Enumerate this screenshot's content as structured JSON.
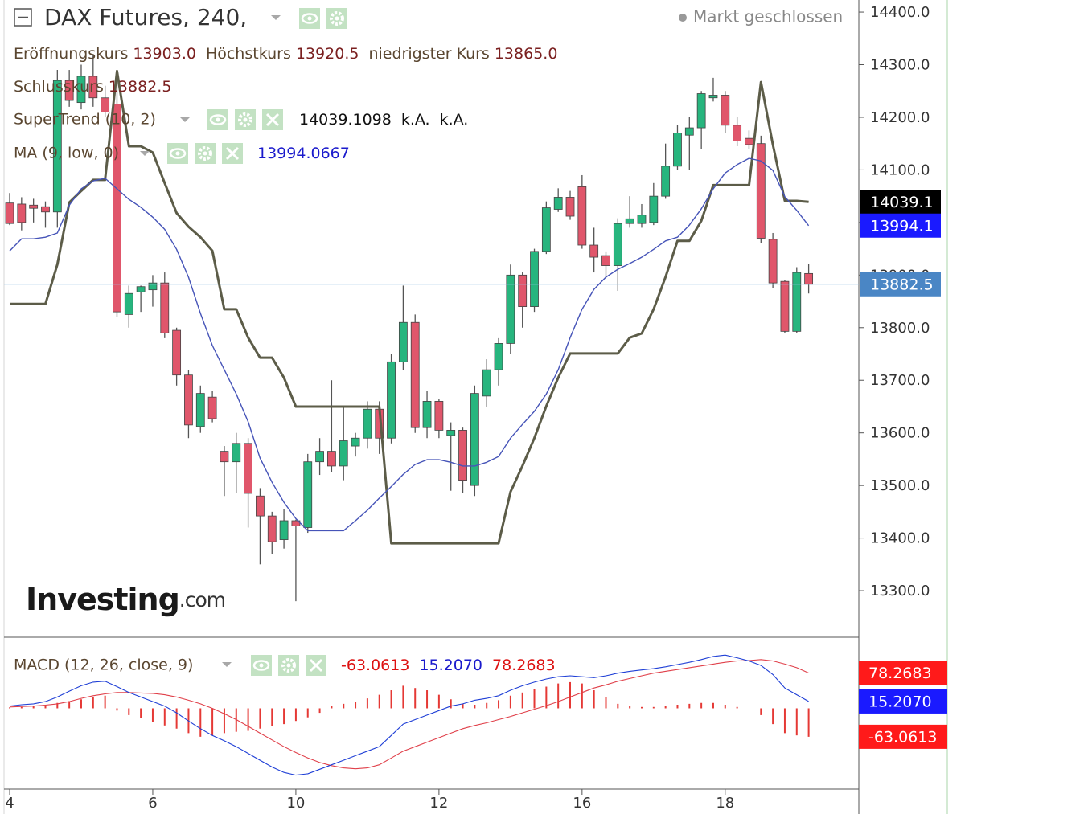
{
  "chart_data": [
    {
      "type": "candlestick",
      "title": "DAX Futures, 240,",
      "status": "Markt geschlossen",
      "ohlc_labels": [
        {
          "name": "Eröffnungskurs",
          "value": "13903.0"
        },
        {
          "name": "Höchstkurs",
          "value": "13920.5"
        },
        {
          "name": "niedrigster Kurs",
          "value": "13865.0"
        },
        {
          "name": "Schlusskurs",
          "value": "13882.5"
        }
      ],
      "watermark": {
        "brand": "Investing",
        "suffix": ".com"
      },
      "categories": [
        "4",
        null,
        null,
        null,
        null,
        null,
        null,
        null,
        null,
        null,
        null,
        null,
        "6",
        null,
        null,
        null,
        null,
        null,
        null,
        null,
        null,
        null,
        null,
        null,
        "10",
        null,
        null,
        null,
        null,
        null,
        null,
        null,
        null,
        null,
        null,
        null,
        "12",
        null,
        null,
        null,
        null,
        null,
        null,
        null,
        null,
        null,
        null,
        null,
        "16",
        null,
        null,
        null,
        null,
        null,
        null,
        null,
        null,
        null,
        null,
        null,
        "18",
        null,
        null,
        null,
        null,
        null,
        null,
        null
      ],
      "open": [
        14037,
        14035,
        14033,
        14030,
        14020,
        14270,
        14228,
        14278,
        14237,
        14225,
        13825,
        13868,
        13872,
        13885,
        13795,
        13710,
        13612,
        13668,
        13565,
        13545,
        13580,
        13480,
        13442,
        13397,
        13433,
        13420,
        13545,
        13565,
        13537,
        13575,
        13590,
        13645,
        13590,
        13735,
        13810,
        13610,
        13660,
        13595,
        13605,
        13500,
        13670,
        13720,
        13770,
        13900,
        13840,
        13945,
        14025,
        14048,
        14068,
        13957,
        13937,
        13918,
        13998,
        13998,
        14000,
        14050,
        14107,
        14166,
        14180,
        14237,
        14242,
        14185,
        14160,
        14150,
        13968,
        13888,
        13793,
        13903
      ],
      "high": [
        14056,
        14048,
        14045,
        14040,
        14290,
        14290,
        14300,
        14320,
        14260,
        14290,
        13880,
        13880,
        13900,
        13905,
        13800,
        13720,
        13690,
        13680,
        13575,
        13600,
        13590,
        13495,
        13450,
        13455,
        13435,
        13560,
        13590,
        13700,
        13650,
        13600,
        13660,
        13660,
        13750,
        13880,
        13825,
        13680,
        13665,
        13620,
        13610,
        13690,
        13740,
        13780,
        13920,
        13905,
        13950,
        14040,
        14065,
        14060,
        14090,
        13990,
        13945,
        14008,
        14050,
        14035,
        14075,
        14150,
        14185,
        14200,
        14250,
        14275,
        14250,
        14200,
        14175,
        14165,
        13980,
        13890,
        13915,
        13920.5
      ],
      "low": [
        13995,
        13985,
        14000,
        13990,
        13990,
        14220,
        14215,
        14220,
        14200,
        13820,
        13800,
        13830,
        13840,
        13780,
        13690,
        13590,
        13600,
        13620,
        13480,
        13485,
        13420,
        13350,
        13370,
        13380,
        13280,
        13410,
        13520,
        13525,
        13510,
        13555,
        13570,
        13560,
        13580,
        13720,
        13600,
        13590,
        13590,
        13490,
        13485,
        13480,
        13650,
        13690,
        13750,
        13800,
        13830,
        13940,
        14020,
        14005,
        13950,
        13905,
        13895,
        13870,
        13990,
        13990,
        13995,
        14045,
        14100,
        14100,
        14140,
        14230,
        14170,
        14145,
        14140,
        13960,
        13875,
        13790,
        13790,
        13865
      ],
      "close": [
        13998,
        14000,
        14027,
        14020,
        14270,
        14232,
        14278,
        14237,
        14210,
        13830,
        13865,
        13878,
        13885,
        13790,
        13710,
        13615,
        13675,
        13627,
        13545,
        13580,
        13485,
        13442,
        13393,
        13433,
        13423,
        13545,
        13565,
        13537,
        13585,
        13590,
        13645,
        13590,
        13735,
        13810,
        13610,
        13660,
        13605,
        13605,
        13510,
        13675,
        13720,
        13770,
        13900,
        13840,
        13945,
        14028,
        14048,
        14012,
        13957,
        13934,
        13918,
        13998,
        14007,
        14014,
        14050,
        14107,
        14170,
        14180,
        14245,
        14242,
        14185,
        14155,
        14148,
        13970,
        13885,
        13793,
        13905,
        13882.5
      ],
      "up_color": "#27b57e",
      "down_color": "#e0566b",
      "last_label": "13882.5",
      "last_label_color": "#4a86c5",
      "price_line_color": "#9cc3e6",
      "series": [
        {
          "name": "SuperTrend (10, 2)",
          "color": "#5c5c48",
          "legend_values": [
            "14039.1098",
            "k.A.",
            "k.A."
          ],
          "legend_color": "#111111",
          "axis_label": "14039.1",
          "label_color": "#000000",
          "values": [
            13845,
            13845,
            13845,
            13845,
            13920,
            14038,
            14060,
            14081,
            14081,
            14288,
            14145,
            14145,
            14133,
            14075,
            14018,
            13992,
            13972,
            13946,
            13835,
            13835,
            13781,
            13743,
            13743,
            13705,
            13650,
            13650,
            13650,
            13650,
            13650,
            13650,
            13650,
            13650,
            13390,
            13390,
            13390,
            13390,
            13390,
            13390,
            13390,
            13390,
            13390,
            13390,
            13488,
            13537,
            13590,
            13651,
            13705,
            13751,
            13751,
            13751,
            13751,
            13751,
            13781,
            13789,
            13835,
            13896,
            13965,
            13965,
            14003,
            14071,
            14071,
            14071,
            14071,
            14267,
            14148,
            14041,
            14041,
            14039.1098
          ]
        },
        {
          "name": "MA (9, low, 0)",
          "color": "#4654b8",
          "legend_values": [
            "13994.0667"
          ],
          "legend_color": "#1a1acc",
          "axis_label": "13994.1",
          "label_color": "#1a1aff",
          "values": [
            13946,
            13969,
            13969,
            13972,
            13980,
            14033,
            14064,
            14079,
            14084,
            14064,
            14044,
            14029,
            14010,
            13987,
            13949,
            13896,
            13827,
            13766,
            13720,
            13674,
            13621,
            13552,
            13506,
            13468,
            13437,
            13414,
            13414,
            13414,
            13414,
            13433,
            13453,
            13476,
            13498,
            13521,
            13540,
            13549,
            13549,
            13544,
            13537,
            13537,
            13544,
            13555,
            13590,
            13616,
            13641,
            13674,
            13720,
            13781,
            13835,
            13873,
            13896,
            13911,
            13922,
            13934,
            13949,
            13965,
            13972,
            13995,
            14026,
            14064,
            14094,
            14110,
            14122,
            14117,
            14099,
            14049,
            14023,
            13994.0667
          ]
        }
      ],
      "ylim": [
        13213,
        14423
      ],
      "yticks": [
        {
          "value": 13300,
          "label": "13300.0"
        },
        {
          "value": 13400,
          "label": "13400.0"
        },
        {
          "value": 13500,
          "label": "13500.0"
        },
        {
          "value": 13600,
          "label": "13600.0"
        },
        {
          "value": 13700,
          "label": "13700.0"
        },
        {
          "value": 13800,
          "label": "13800.0"
        },
        {
          "value": 13900,
          "label": "13900.0"
        },
        {
          "value": 14000,
          "label": "14000.0"
        },
        {
          "value": 14100,
          "label": "14100.0"
        },
        {
          "value": 14200,
          "label": "14200.0"
        },
        {
          "value": 14300,
          "label": "14300.0"
        },
        {
          "value": 14400,
          "label": "14400.0"
        }
      ]
    },
    {
      "type": "macd",
      "title": "MACD (12, 26, close, 9)",
      "ylim": [
        -179,
        154
      ],
      "histogram": {
        "color": "#e53935",
        "legend_value": "-63.0613",
        "axis_label": "-63.0613",
        "values": [
          2,
          3,
          5,
          8,
          12,
          16,
          20,
          24,
          28,
          -5,
          -15,
          -22,
          -30,
          -38,
          -45,
          -55,
          -63,
          -60,
          -55,
          -52,
          -50,
          -45,
          -40,
          -35,
          -28,
          -20,
          -10,
          5,
          10,
          15,
          22,
          30,
          40,
          50,
          45,
          40,
          30,
          20,
          10,
          8,
          12,
          18,
          28,
          35,
          42,
          48,
          55,
          58,
          55,
          40,
          25,
          10,
          5,
          3,
          3,
          5,
          8,
          10,
          12,
          12,
          8,
          3,
          0,
          -15,
          -35,
          -55,
          -60,
          -63.0613
        ]
      },
      "macd": {
        "color": "#1f3fd6",
        "legend_value": "15.2070",
        "axis_label": "15.2070",
        "values": [
          5,
          8,
          10,
          15,
          25,
          38,
          50,
          58,
          60,
          48,
          35,
          25,
          15,
          5,
          -10,
          -28,
          -45,
          -60,
          -72,
          -85,
          -100,
          -115,
          -130,
          -142,
          -148,
          -145,
          -135,
          -125,
          -115,
          -105,
          -95,
          -85,
          -60,
          -35,
          -25,
          -15,
          -5,
          5,
          10,
          18,
          22,
          28,
          40,
          50,
          58,
          65,
          70,
          72,
          70,
          68,
          72,
          78,
          82,
          85,
          88,
          92,
          97,
          102,
          108,
          115,
          118,
          112,
          105,
          95,
          75,
          45,
          30,
          15.207
        ]
      },
      "signal": {
        "color": "#e0404a",
        "legend_value": "78.2683",
        "axis_label": "78.2683",
        "values": [
          3,
          4,
          5,
          7,
          10,
          15,
          22,
          28,
          32,
          35,
          35,
          34,
          33,
          30,
          25,
          18,
          10,
          0,
          -12,
          -25,
          -40,
          -55,
          -70,
          -85,
          -98,
          -110,
          -120,
          -127,
          -132,
          -134,
          -132,
          -125,
          -110,
          -95,
          -85,
          -75,
          -65,
          -55,
          -45,
          -38,
          -32,
          -25,
          -18,
          -10,
          -2,
          6,
          15,
          25,
          35,
          45,
          52,
          60,
          66,
          72,
          78,
          82,
          86,
          90,
          94,
          98,
          102,
          105,
          106,
          108,
          105,
          98,
          90,
          78.2683
        ]
      }
    }
  ]
}
